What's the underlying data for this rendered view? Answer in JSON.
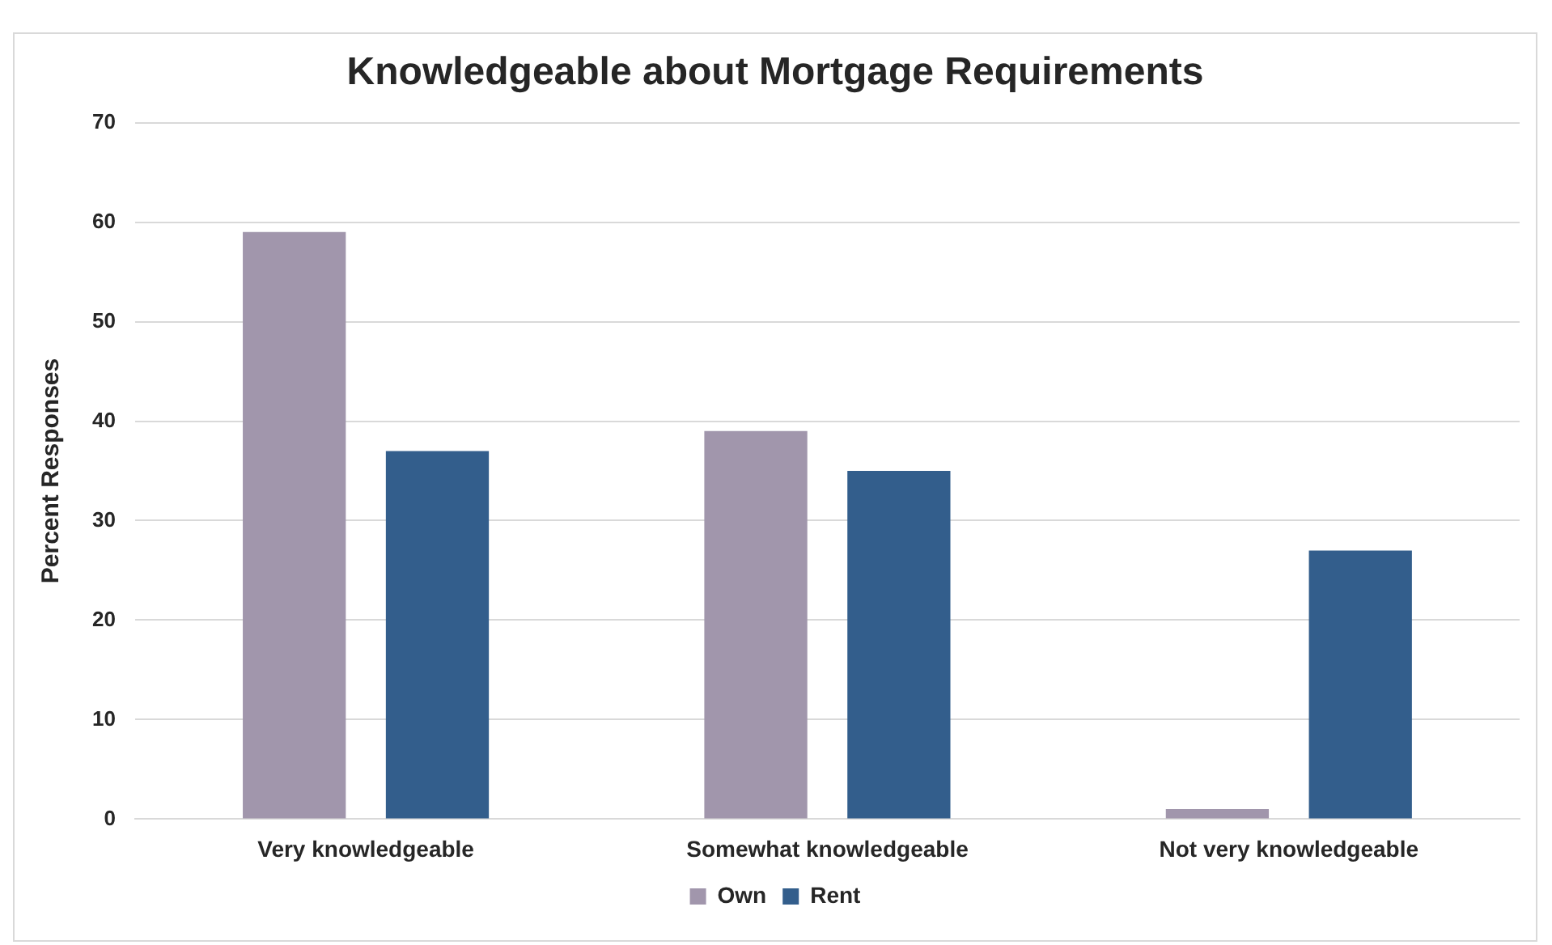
{
  "chart_data": {
    "type": "bar",
    "title": "Knowledgeable about Mortgage Requirements",
    "ylabel": "Percent Responses",
    "categories": [
      "Very knowledgeable",
      "Somewhat knowledgeable",
      "Not very knowledgeable"
    ],
    "series": [
      {
        "name": "Own",
        "color": "#a196ac",
        "values": [
          59,
          39,
          1
        ]
      },
      {
        "name": "Rent",
        "color": "#335e8c",
        "values": [
          37,
          35,
          27
        ]
      }
    ],
    "ylim": [
      0,
      70
    ],
    "yticks": [
      0,
      10,
      20,
      30,
      40,
      50,
      60,
      70
    ],
    "grid": "y",
    "legend": "bottom"
  }
}
